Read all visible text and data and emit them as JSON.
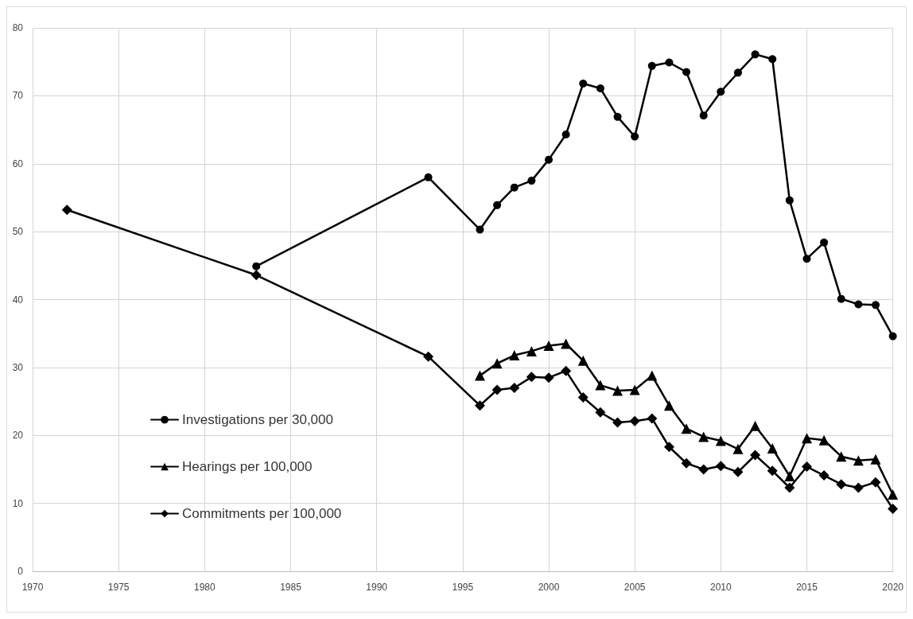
{
  "chart_data": {
    "type": "line",
    "xlim": [
      1970,
      2020
    ],
    "xticks": [
      1970,
      1975,
      1980,
      1985,
      1990,
      1995,
      2000,
      2005,
      2010,
      2015,
      2020
    ],
    "ylim": [
      0,
      80
    ],
    "yticks": [
      0,
      10,
      20,
      30,
      40,
      50,
      60,
      70,
      80
    ],
    "grid": true,
    "legend": "left",
    "line_style": "solid",
    "series": [
      {
        "name": "Investigations per 30,000",
        "color": "#000000",
        "marker": "circle",
        "x": [
          1983,
          1993,
          1996,
          1997,
          1998,
          1999,
          2000,
          2001,
          2002,
          2003,
          2004,
          2005,
          2006,
          2007,
          2008,
          2009,
          2010,
          2011,
          2012,
          2013,
          2014,
          2015,
          2016,
          2017,
          2018,
          2019,
          2020
        ],
        "values": [
          44.9,
          58.0,
          50.3,
          53.9,
          56.5,
          57.5,
          60.6,
          64.3,
          71.8,
          71.1,
          66.9,
          64.0,
          74.4,
          74.9,
          73.5,
          67.1,
          70.6,
          73.4,
          76.1,
          75.4,
          54.6,
          46.0,
          48.4,
          40.1,
          39.3,
          39.2,
          34.6
        ]
      },
      {
        "name": "Hearings per 100,000",
        "color": "#000000",
        "marker": "triangle",
        "x": [
          1996,
          1997,
          1998,
          1999,
          2000,
          2001,
          2002,
          2003,
          2004,
          2005,
          2006,
          2007,
          2008,
          2009,
          2010,
          2011,
          2012,
          2013,
          2014,
          2015,
          2016,
          2017,
          2018,
          2019,
          2020
        ],
        "values": [
          28.8,
          30.6,
          31.8,
          32.4,
          33.2,
          33.5,
          31.0,
          27.4,
          26.6,
          26.7,
          28.8,
          24.4,
          21.0,
          19.8,
          19.2,
          18.0,
          21.4,
          18.1,
          14.0,
          19.6,
          19.3,
          16.9,
          16.3,
          16.5,
          11.3
        ]
      },
      {
        "name": "Commitments per 100,000",
        "color": "#000000",
        "marker": "diamond",
        "x": [
          1972,
          1983,
          1993,
          1996,
          1997,
          1998,
          1999,
          2000,
          2001,
          2002,
          2003,
          2004,
          2005,
          2006,
          2007,
          2008,
          2009,
          2010,
          2011,
          2012,
          2013,
          2014,
          2015,
          2016,
          2017,
          2018,
          2019,
          2020
        ],
        "values": [
          53.2,
          43.6,
          31.6,
          24.4,
          26.7,
          27.0,
          28.6,
          28.5,
          29.5,
          25.6,
          23.4,
          21.9,
          22.1,
          22.5,
          18.3,
          15.9,
          15.0,
          15.5,
          14.6,
          17.1,
          14.8,
          12.3,
          15.4,
          14.1,
          12.8,
          12.3,
          13.1,
          9.2
        ]
      }
    ]
  }
}
